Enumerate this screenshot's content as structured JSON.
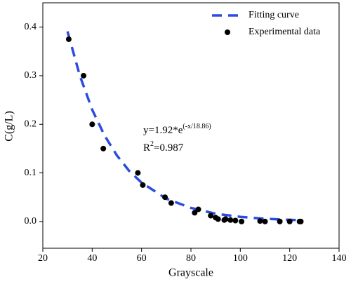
{
  "chart_data": {
    "type": "scatter",
    "x_label": "Grayscale",
    "y_label": "C(g/L)",
    "xlim": [
      20,
      140
    ],
    "ylim": [
      -0.055,
      0.45
    ],
    "xticks": [
      20,
      40,
      60,
      80,
      100,
      120,
      140
    ],
    "yticks": [
      {
        "value": 0,
        "label": "0.0"
      },
      0.1,
      0.2,
      0.3,
      0.4
    ],
    "legend": "top-right",
    "annotations": {
      "equation": {
        "base": "y=1.92*e",
        "exponent": "(-x/18.86)"
      },
      "r_squared": {
        "base": "R",
        "exponent": "2",
        "rest": "=0.987"
      }
    },
    "series": [
      {
        "name": "Fitting curve",
        "type": "line",
        "color": "#2b4ce0",
        "x": [
          30,
          35,
          40,
          45,
          50,
          55,
          60,
          70,
          80,
          90,
          100,
          110,
          124
        ],
        "values": [
          0.391,
          0.3,
          0.23,
          0.177,
          0.136,
          0.104,
          0.08,
          0.047,
          0.028,
          0.016,
          0.0096,
          0.0056,
          0.0027
        ]
      },
      {
        "name": "Experimental data",
        "type": "scatter",
        "color": "#000000",
        "x": [
          30.5,
          36.5,
          40,
          44.5,
          58.5,
          60.5,
          69.5,
          72,
          81.5,
          83,
          88,
          90,
          91,
          93.5,
          94,
          96,
          98,
          100.5,
          108,
          110,
          116,
          120,
          124,
          124.5
        ],
        "values": [
          0.375,
          0.3,
          0.2,
          0.15,
          0.1,
          0.075,
          0.05,
          0.038,
          0.018,
          0.025,
          0.012,
          0.008,
          0.005,
          0.003,
          0.005,
          0.003,
          0.002,
          0.0,
          0.001,
          0.0,
          0.0,
          0.0,
          0.0,
          0.0
        ]
      }
    ]
  }
}
